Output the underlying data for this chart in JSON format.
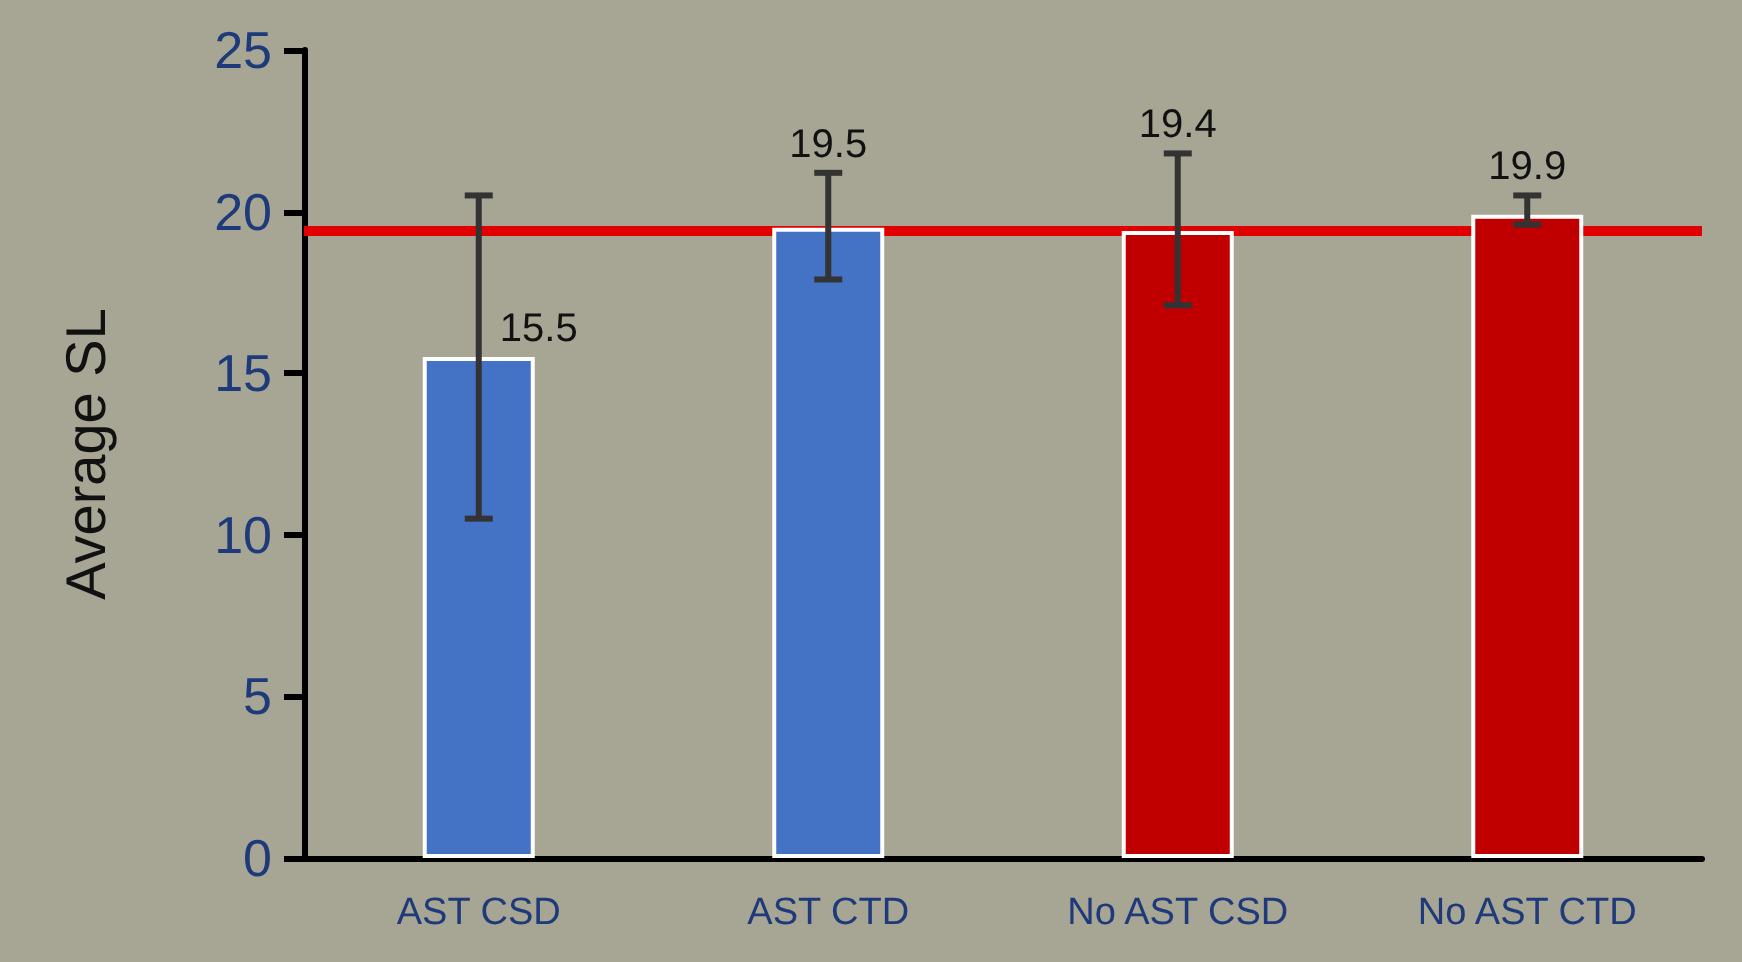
{
  "chart_data": {
    "type": "bar",
    "ylabel": "Average SL",
    "categories": [
      "AST CSD",
      "AST CTD",
      "No AST CSD",
      "No AST CTD"
    ],
    "values": [
      15.5,
      19.5,
      19.4,
      19.9
    ],
    "colors": [
      "#4472c4",
      "#4472c4",
      "#c00000",
      "#c00000"
    ],
    "errors": [
      [
        10.5,
        20.5
      ],
      [
        17.9,
        21.2
      ],
      [
        17.1,
        21.8
      ],
      [
        19.6,
        20.5
      ]
    ],
    "data_labels": true,
    "ylim": [
      0,
      25
    ],
    "yticks": [
      0,
      5,
      10,
      15,
      20,
      25
    ],
    "grid": false,
    "ref_lines": [
      {
        "axis": "y",
        "value": 19.4,
        "color": "#e00000"
      }
    ]
  }
}
